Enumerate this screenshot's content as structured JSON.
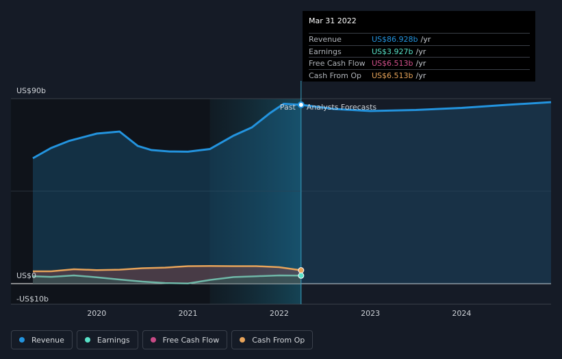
{
  "chart_data": {
    "type": "area",
    "title": "",
    "y_axis": {
      "top_label": "US$90b",
      "zero_label": "US$0",
      "bottom_label": "-US$10b",
      "ylim": [
        -10,
        90
      ]
    },
    "x_axis": {
      "ticks": [
        "2020",
        "2021",
        "2022",
        "2023",
        "2024"
      ],
      "xlim": [
        2019.3,
        2024.98
      ]
    },
    "past_label": "Past",
    "forecast_label": "Analysts Forecasts",
    "divider_x": 2022.24,
    "highlight_start_x": 2021.24,
    "series": [
      {
        "name": "Revenue",
        "color": "#2394df",
        "past": [
          [
            2019.3,
            61
          ],
          [
            2019.5,
            66
          ],
          [
            2019.7,
            69.5
          ],
          [
            2020.0,
            73
          ],
          [
            2020.25,
            74
          ],
          [
            2020.45,
            67
          ],
          [
            2020.6,
            65
          ],
          [
            2020.8,
            64.3
          ],
          [
            2021.0,
            64.2
          ],
          [
            2021.24,
            65.5
          ],
          [
            2021.5,
            72
          ],
          [
            2021.7,
            76
          ],
          [
            2021.9,
            83
          ],
          [
            2022.05,
            87.5
          ],
          [
            2022.24,
            87
          ]
        ],
        "forecast": [
          [
            2022.24,
            87
          ],
          [
            2022.6,
            85
          ],
          [
            2023.0,
            84
          ],
          [
            2023.5,
            84.5
          ],
          [
            2024.0,
            85.5
          ],
          [
            2024.5,
            87
          ],
          [
            2024.98,
            88.3
          ]
        ]
      },
      {
        "name": "Earnings",
        "color": "#58e1c7",
        "past": [
          [
            2019.3,
            3.6
          ],
          [
            2019.5,
            3.3
          ],
          [
            2019.75,
            4
          ],
          [
            2020.0,
            3.1
          ],
          [
            2020.25,
            2
          ],
          [
            2020.5,
            1
          ],
          [
            2020.75,
            0.3
          ],
          [
            2021.0,
            0.1
          ],
          [
            2021.24,
            1.8
          ],
          [
            2021.5,
            3.2
          ],
          [
            2021.75,
            3.6
          ],
          [
            2022.0,
            4
          ],
          [
            2022.24,
            3.9
          ]
        ]
      },
      {
        "name": "Free Cash Flow",
        "color": "#c84a86",
        "past": [
          [
            2019.3,
            6
          ],
          [
            2019.5,
            6
          ],
          [
            2019.75,
            7
          ],
          [
            2020.0,
            6.6
          ],
          [
            2020.25,
            6.8
          ],
          [
            2020.5,
            7.5
          ],
          [
            2020.75,
            7.8
          ],
          [
            2021.0,
            8.5
          ],
          [
            2021.24,
            8.6
          ],
          [
            2021.5,
            8.5
          ],
          [
            2021.75,
            8.5
          ],
          [
            2022.0,
            8
          ],
          [
            2022.24,
            6.5
          ]
        ]
      },
      {
        "name": "Cash From Op",
        "color": "#e8a45a",
        "past": [
          [
            2019.3,
            6
          ],
          [
            2019.5,
            6
          ],
          [
            2019.75,
            7
          ],
          [
            2020.0,
            6.6
          ],
          [
            2020.25,
            6.8
          ],
          [
            2020.5,
            7.5
          ],
          [
            2020.75,
            7.8
          ],
          [
            2021.0,
            8.5
          ],
          [
            2021.24,
            8.6
          ],
          [
            2021.5,
            8.5
          ],
          [
            2021.75,
            8.5
          ],
          [
            2022.0,
            8
          ],
          [
            2022.24,
            6.5
          ]
        ]
      }
    ]
  },
  "tooltip": {
    "date": "Mar 31 2022",
    "rows": [
      {
        "label": "Revenue",
        "value": "US$86.928b",
        "unit": "/yr",
        "color": "#2394df"
      },
      {
        "label": "Earnings",
        "value": "US$3.927b",
        "unit": "/yr",
        "color": "#58e1c7"
      },
      {
        "label": "Free Cash Flow",
        "value": "US$6.513b",
        "unit": "/yr",
        "color": "#c84a86"
      },
      {
        "label": "Cash From Op",
        "value": "US$6.513b",
        "unit": "/yr",
        "color": "#e8a45a"
      }
    ]
  },
  "legend": [
    {
      "label": "Revenue",
      "color": "#2394df"
    },
    {
      "label": "Earnings",
      "color": "#58e1c7"
    },
    {
      "label": "Free Cash Flow",
      "color": "#c84a86"
    },
    {
      "label": "Cash From Op",
      "color": "#e8a45a"
    }
  ]
}
